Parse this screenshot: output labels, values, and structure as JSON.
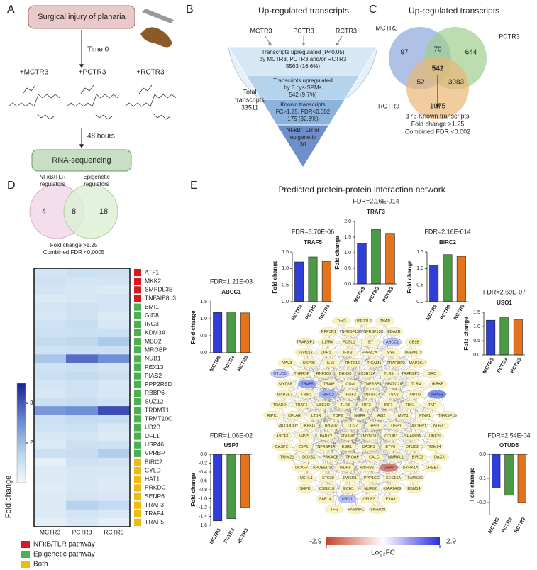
{
  "panel_a": {
    "letter": "A",
    "injury": "Surgical injury of planaria",
    "time0": "Time 0",
    "treatments": [
      "+MCTR3",
      "+PCTR3",
      "+RCTR3"
    ],
    "hours": "48 hours",
    "sequencing": "RNA-sequencing"
  },
  "panel_b": {
    "letter": "B",
    "title": "Up-regulated transcripts",
    "inputs": [
      "MCTR3",
      "PCTR3",
      "RCTR3"
    ],
    "levels": [
      [
        "Transcripts upregulated (P<0.05)",
        "by MCTR3, PCTR3 and/or RCTR3",
        "5563 (16.6%)"
      ],
      [
        "Transcripts upregulated",
        "by 3 cys-SPMs",
        "542 (9.7%)"
      ],
      [
        "Known transcripts",
        "FC>1.25, FDR<0.002",
        "175 (32.3%)"
      ],
      [
        "NFκB/TLR or",
        "epigenetic",
        "30"
      ]
    ],
    "colors": [
      "#d6e7f6",
      "#b6d3ee",
      "#8cb2de",
      "#6f8fca"
    ],
    "total": [
      "Total",
      "transcripts",
      "33511"
    ]
  },
  "panel_c": {
    "letter": "C",
    "title": "Up-regulated transcripts",
    "sets": [
      "MCTR3",
      "PCTR3",
      "RCTR3"
    ],
    "colors": [
      "#8fa6de",
      "#9fcf8f",
      "#eab676"
    ],
    "counts": {
      "mctr3_only": 97,
      "pctr3_only": 644,
      "rctr3_only": 1075,
      "mctr3_pctr3": 70,
      "mctr3_rctr3": 52,
      "pctr3_rctr3": 3083,
      "all": 542
    },
    "note": [
      "175 Known transcripts",
      "Fold change >1.25",
      "Combined FDR <0.002"
    ]
  },
  "panel_d": {
    "letter": "D",
    "sets": [
      [
        "NFκB/TLR",
        "regulators"
      ],
      [
        "Epigenetic",
        "regulators"
      ]
    ],
    "set_colors": [
      "#f3d6e6",
      "#dcefd4"
    ],
    "counts": [
      4,
      8,
      18
    ],
    "note": [
      "Fold change >1.25",
      "Combined FDR <0.0005"
    ],
    "heatmap": {
      "columns": [
        "MCTR3",
        "PCTR3",
        "RCTR3"
      ],
      "genes": [
        "ATF1",
        "MKK2",
        "SMPDL3B",
        "TNFAIP8L3",
        "BMI1",
        "GID8",
        "ING3",
        "KDM3A",
        "MBD2",
        "MRGBP",
        "NUB1",
        "PEX13",
        "PIAS2",
        "PPP2R5D",
        "RBBP6",
        "SUZ12",
        "TRDMT1",
        "TRMT10C",
        "UB2B",
        "UFL1",
        "USP46",
        "VPRBP",
        "BIRC2",
        "CYLD",
        "HAT1",
        "PRKDC",
        "SENP6",
        "TRAF3",
        "TRAF4",
        "TRAF5"
      ],
      "row_colors": [
        "#d7191c",
        "#d7191c",
        "#d7191c",
        "#d7191c",
        "#4caf50",
        "#4caf50",
        "#4caf50",
        "#4caf50",
        "#4caf50",
        "#4caf50",
        "#4caf50",
        "#4caf50",
        "#4caf50",
        "#4caf50",
        "#4caf50",
        "#4caf50",
        "#4caf50",
        "#4caf50",
        "#4caf50",
        "#4caf50",
        "#4caf50",
        "#4caf50",
        "#f2b90f",
        "#f2b90f",
        "#f2b90f",
        "#f2b90f",
        "#f2b90f",
        "#f2b90f",
        "#f2b90f",
        "#f2b90f"
      ],
      "values": [
        [
          1.4,
          1.5,
          1.45
        ],
        [
          1.45,
          1.4,
          1.4
        ],
        [
          1.4,
          1.35,
          1.3
        ],
        [
          1.3,
          1.35,
          1.4
        ],
        [
          1.4,
          1.45,
          1.4
        ],
        [
          1.35,
          1.45,
          1.3
        ],
        [
          1.45,
          1.55,
          1.35
        ],
        [
          1.5,
          1.5,
          1.5
        ],
        [
          1.6,
          1.65,
          1.85
        ],
        [
          1.45,
          1.5,
          1.5
        ],
        [
          1.9,
          2.8,
          2.5
        ],
        [
          1.45,
          1.5,
          1.4
        ],
        [
          1.5,
          1.6,
          1.5
        ],
        [
          1.4,
          1.45,
          1.35
        ],
        [
          1.35,
          1.45,
          1.35
        ],
        [
          1.5,
          1.55,
          1.45
        ],
        [
          2.4,
          2.5,
          3.1
        ],
        [
          1.5,
          1.6,
          1.55
        ],
        [
          1.45,
          1.5,
          1.35
        ],
        [
          1.35,
          1.4,
          1.3
        ],
        [
          1.3,
          1.5,
          1.45
        ],
        [
          1.5,
          1.55,
          1.8
        ],
        [
          1.2,
          1.45,
          1.4
        ],
        [
          1.3,
          1.35,
          1.35
        ],
        [
          1.3,
          1.35,
          1.3
        ],
        [
          1.25,
          1.35,
          1.3
        ],
        [
          1.3,
          1.4,
          1.35
        ],
        [
          1.3,
          1.75,
          1.6
        ],
        [
          1.3,
          1.4,
          1.35
        ],
        [
          1.2,
          1.35,
          1.2
        ]
      ],
      "colorbar_label": "Fold change",
      "lim": [
        1,
        3.5
      ],
      "ticks": [
        2,
        3
      ]
    },
    "legend": [
      {
        "name": "NFκB/TLR pathway",
        "color": "#d7191c"
      },
      {
        "name": "Epigenetic pathway",
        "color": "#4caf50"
      },
      {
        "name": "Both",
        "color": "#f2b90f"
      }
    ]
  },
  "panel_e": {
    "letter": "E",
    "title": "Predicted protein-protein interaction network",
    "bars": [
      {
        "fdr": "FDR=6.70E-06",
        "gene": "TRAF5",
        "ylabel": "Fold change",
        "categories": [
          "MCTR3",
          "PCTR3",
          "RCTR3"
        ],
        "colors": [
          "#2f3fd8",
          "#4a9a44",
          "#e3741f"
        ],
        "values": [
          1.2,
          1.35,
          1.22
        ],
        "ylim": [
          0,
          1.5
        ],
        "yticks": [
          {
            "value": 0,
            "label": "0.0"
          },
          0.5,
          {
            "value": 1,
            "label": "1.0"
          },
          1.5
        ]
      },
      {
        "fdr": "FDR=2.16E-014",
        "gene": "TRAF3",
        "ylabel": "Fold change",
        "categories": [
          "MCTR3",
          "PCTR3",
          "RCTR3"
        ],
        "colors": [
          "#2f3fd8",
          "#4a9a44",
          "#e3741f"
        ],
        "values": [
          1.3,
          1.75,
          1.62
        ],
        "ylim": [
          0,
          2
        ],
        "yticks": [
          {
            "value": 0,
            "label": "0.0"
          },
          0.5,
          {
            "value": 1,
            "label": "1.0"
          },
          1.5,
          {
            "value": 2,
            "label": "2.0"
          }
        ]
      },
      {
        "fdr": "FDR=2.16E-014",
        "gene": "BIRC2",
        "ylabel": "Fold change",
        "categories": [
          "MCTR3",
          "PCTR3",
          "RCTR3"
        ],
        "colors": [
          "#2f3fd8",
          "#4a9a44",
          "#e3741f"
        ],
        "values": [
          1.1,
          1.42,
          1.37
        ],
        "ylim": [
          0,
          1.5
        ],
        "yticks": [
          {
            "value": 0,
            "label": "0.0"
          },
          0.5,
          {
            "value": 1,
            "label": "1.0"
          },
          1.5
        ]
      },
      {
        "fdr": "FDR=1.21E-03",
        "gene": "ABCC1",
        "ylabel": "Fold change",
        "categories": [
          "MCTR3",
          "PCTR3",
          "RCTR3"
        ],
        "colors": [
          "#2f3fd8",
          "#4a9a44",
          "#e3741f"
        ],
        "values": [
          1.18,
          1.2,
          1.17
        ],
        "ylim": [
          0,
          1.5
        ],
        "yticks": [
          {
            "value": 0,
            "label": "0.0"
          },
          0.5,
          {
            "value": 1,
            "label": "1.0"
          },
          1.5
        ]
      },
      {
        "fdr": "FDR=2.69E-07",
        "gene": "USO1",
        "ylabel": "Fold change",
        "categories": [
          "MCTR3",
          "PCTR3",
          "RCTR3"
        ],
        "colors": [
          "#2f3fd8",
          "#4a9a44",
          "#e3741f"
        ],
        "values": [
          1.22,
          1.33,
          1.25
        ],
        "ylim": [
          0,
          1.5
        ],
        "yticks": [
          {
            "value": 0,
            "label": "0.0"
          },
          0.5,
          {
            "value": 1,
            "label": "1.0"
          },
          1.5
        ]
      },
      {
        "fdr": "FDR=1.06E-02",
        "gene": "USP7",
        "ylabel": "Fold change",
        "categories": [
          "MCTR3",
          "PCTR3",
          "RCTR3"
        ],
        "colors": [
          "#2f3fd8",
          "#4a9a44",
          "#e3741f"
        ],
        "values": [
          -1.5,
          -1.45,
          -1.2
        ],
        "ylim": [
          -1.6,
          0
        ],
        "yticks": [
          {
            "value": 0,
            "label": "0.0"
          },
          -0.2,
          -0.4,
          -0.6,
          -0.8,
          {
            "value": -1,
            "label": "-1.0"
          },
          -1.2,
          -1.4,
          -1.6
        ]
      },
      {
        "fdr": "FDR=2.54E-04",
        "gene": "OTUD5",
        "ylabel": "Fold change",
        "categories": [
          "MCTR3",
          "PCTR3",
          "RCTR3"
        ],
        "colors": [
          "#2f3fd8",
          "#4a9a44",
          "#e3741f"
        ],
        "values": [
          -0.14,
          -0.17,
          -0.2
        ],
        "ylim": [
          -0.25,
          0
        ],
        "yticks": [
          {
            "value": 0,
            "label": "0.0"
          },
          -0.1,
          -0.2
        ]
      }
    ],
    "nodes": [
      {
        "label": "Traf3"
      },
      {
        "label": "USP17L2"
      },
      {
        "label": "TNAP"
      },
      {
        "label": "PPP3R1"
      },
      {
        "label": "TNFRSF13B"
      },
      {
        "label": "TNFRSF13C"
      },
      {
        "label": "EDA2R"
      },
      {
        "label": "TRAF3IP1"
      },
      {
        "label": "IL17RA"
      },
      {
        "label": "FOSL1"
      },
      {
        "label": "E7"
      },
      {
        "label": "ABCC1",
        "color": "#c4cbf2"
      },
      {
        "label": "CBLB"
      },
      {
        "label": "Tnfrsf12a"
      },
      {
        "label": "LMP1"
      },
      {
        "label": "IFIT3"
      },
      {
        "label": "PPP3CA"
      },
      {
        "label": "SYK"
      },
      {
        "label": "TMEM173"
      },
      {
        "label": "VAV3"
      },
      {
        "label": "USP25"
      },
      {
        "label": "IL15"
      },
      {
        "label": "RNF216"
      },
      {
        "label": "TICAM1"
      },
      {
        "label": "TRAF3IP2"
      },
      {
        "label": "MAP3K14"
      },
      {
        "label": "OTUD5",
        "color": "#c9cff3"
      },
      {
        "label": "TNFRSF"
      },
      {
        "label": "RNF166"
      },
      {
        "label": "DHX58"
      },
      {
        "label": "ZC3H12A"
      },
      {
        "label": "TLR9"
      },
      {
        "label": "TRAF3IP3"
      },
      {
        "label": "SRC"
      },
      {
        "label": "MYD88"
      },
      {
        "label": "TRAF5",
        "color": "#9aa8ec"
      },
      {
        "label": "TRAIP"
      },
      {
        "label": "CD40"
      },
      {
        "label": "TNFRSF4"
      },
      {
        "label": "NFATC2IP"
      },
      {
        "label": "TLR4"
      },
      {
        "label": "IKBKE"
      },
      {
        "label": "MAP3K7"
      },
      {
        "label": "TNIP1"
      },
      {
        "label": "BIRC2",
        "color": "#a8b4ee"
      },
      {
        "label": "TRAF2"
      },
      {
        "label": "TNFSF14"
      },
      {
        "label": "TSKS"
      },
      {
        "label": "OPTN"
      },
      {
        "label": "TRAF3",
        "color": "#7f93e6"
      },
      {
        "label": "TRADD"
      },
      {
        "label": "TRAF1"
      },
      {
        "label": "UBE2O"
      },
      {
        "label": "TLR3"
      },
      {
        "label": "IRF3"
      },
      {
        "label": "IRF1"
      },
      {
        "label": "TBK1"
      },
      {
        "label": "TNF"
      },
      {
        "label": "RIPK1"
      },
      {
        "label": "CFLAR"
      },
      {
        "label": "LTBR"
      },
      {
        "label": "TDP2"
      },
      {
        "label": "NGFR"
      },
      {
        "label": "AZI2"
      },
      {
        "label": "MYT1"
      },
      {
        "label": "PINK1"
      },
      {
        "label": "TNFRSF1B"
      },
      {
        "label": "CALCOCO2"
      },
      {
        "label": "IKBKG"
      },
      {
        "label": "TRIM37"
      },
      {
        "label": "CD27"
      },
      {
        "label": "SPP1"
      },
      {
        "label": "USP1"
      },
      {
        "label": "TAX1BP1"
      },
      {
        "label": "NLRX1"
      },
      {
        "label": "ABCF1"
      },
      {
        "label": "MAVS"
      },
      {
        "label": "PARK2"
      },
      {
        "label": "PDLIM7"
      },
      {
        "label": "ZMYND11"
      },
      {
        "label": "OTUB1"
      },
      {
        "label": "SHARPIN"
      },
      {
        "label": "UBE2I"
      },
      {
        "label": "CASP2"
      },
      {
        "label": "ZBP1"
      },
      {
        "label": "TNFRSF1A"
      },
      {
        "label": "ESR1"
      },
      {
        "label": "CASP3"
      },
      {
        "label": "ETV6"
      },
      {
        "label": "OTUB2"
      },
      {
        "label": "TRIM14"
      },
      {
        "label": "TRIM21"
      },
      {
        "label": "DDX3X"
      },
      {
        "label": "PRKACB"
      },
      {
        "label": "TROAP"
      },
      {
        "label": "CALC"
      },
      {
        "label": "NMRAL1"
      },
      {
        "label": "BIRC3"
      },
      {
        "label": "DAXX"
      },
      {
        "label": "DCAF7"
      },
      {
        "label": "APOBEC3C"
      },
      {
        "label": "WDR5"
      },
      {
        "label": "WDR82"
      },
      {
        "label": "USP7",
        "color": "#d98068"
      },
      {
        "label": "DYRK1A"
      },
      {
        "label": "CREB1"
      },
      {
        "label": "UCHL1"
      },
      {
        "label": "STK38"
      },
      {
        "label": "EWSR1"
      },
      {
        "label": "PPP1CC"
      },
      {
        "label": "SEC16A"
      },
      {
        "label": "FAM53C"
      },
      {
        "label": "SHPK"
      },
      {
        "label": "CSNK1E"
      },
      {
        "label": "ECH1"
      },
      {
        "label": "NUP62"
      },
      {
        "label": "KIAA1429"
      },
      {
        "label": "RBM14"
      },
      {
        "label": "SAR1A"
      },
      {
        "label": "USO1",
        "color": "#b9c1f0"
      },
      {
        "label": "CELF2"
      },
      {
        "label": "EYA3"
      },
      {
        "label": "TFG"
      },
      {
        "label": "HNRNPC"
      },
      {
        "label": "SNAP29"
      }
    ],
    "colorbar": {
      "lim": [
        -2.9,
        2.9
      ],
      "label": "Log₂FC",
      "colors": [
        "#c8462a",
        "#ffffff",
        "#2a2ee0"
      ]
    }
  }
}
